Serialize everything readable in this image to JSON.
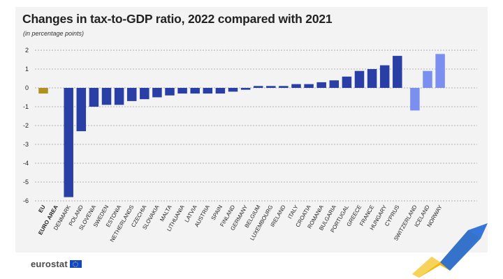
{
  "chart_data": {
    "type": "bar",
    "title": "Changes in tax-to-GDP ratio, 2022 compared with 2021",
    "subtitle": "(in percentage points)",
    "ylim": [
      -6,
      2
    ],
    "yticks": [
      2,
      1,
      0,
      -1,
      -2,
      -3,
      -4,
      -5,
      -6
    ],
    "grid": true,
    "categories": [
      "EU",
      "EURO AREA",
      "DENMARK",
      "POLAND",
      "SLOVENIA",
      "SWEDEN",
      "ESTONIA",
      "NETHERLANDS",
      "CZECHIA",
      "SLOVAKIA",
      "MALTA",
      "LITHUANIA",
      "LATVIA",
      "AUSTRIA",
      "SPAIN",
      "FINLAND",
      "GERMANY",
      "BELGIUM",
      "LUXEMBOURG",
      "IRELAND",
      "ITALY",
      "CROATIA",
      "ROMANIA",
      "BULGARIA",
      "PORTUGAL",
      "GREECE",
      "FRANCE",
      "HUNGARY",
      "CYPRUS",
      "SWITZERLAND",
      "ICELAND",
      "NORWAY"
    ],
    "values": [
      -0.3,
      0.0,
      -5.8,
      -2.3,
      -1.0,
      -0.9,
      -0.9,
      -0.7,
      -0.6,
      -0.5,
      -0.4,
      -0.3,
      -0.3,
      -0.3,
      -0.3,
      -0.2,
      -0.1,
      0.1,
      0.1,
      0.1,
      0.2,
      0.2,
      0.3,
      0.4,
      0.6,
      0.9,
      1.0,
      1.2,
      1.7,
      -1.2,
      0.9,
      1.8
    ],
    "groups": [
      "aggregate",
      "aggregate",
      "eu",
      "eu",
      "eu",
      "eu",
      "eu",
      "eu",
      "eu",
      "eu",
      "eu",
      "eu",
      "eu",
      "eu",
      "eu",
      "eu",
      "eu",
      "eu",
      "eu",
      "eu",
      "eu",
      "eu",
      "eu",
      "eu",
      "eu",
      "eu",
      "eu",
      "eu",
      "eu",
      "efta",
      "efta",
      "efta"
    ],
    "bold_categories": [
      "EU",
      "EURO AREA"
    ],
    "colors": {
      "aggregate": "#b09120",
      "eu": "#2a3fa6",
      "efta": "#7b8ff0",
      "grid": "#9a9a9a",
      "axis_text": "#222222"
    }
  },
  "footer": {
    "logo_text": "eurostat"
  }
}
